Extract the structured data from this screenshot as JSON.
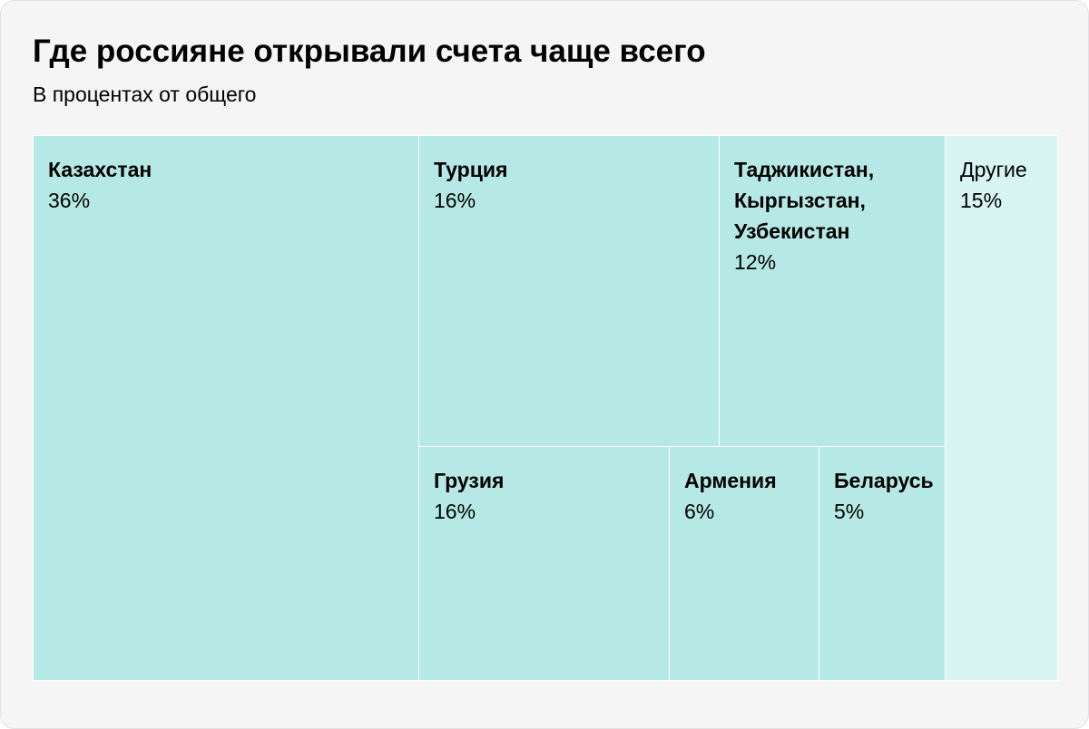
{
  "title": "Где россияне открывали счета чаще всего",
  "subtitle": "В процентах от общего",
  "colors": {
    "card_background": "#f5f5f6",
    "cell_main": "#b6e9e5",
    "cell_other": "#d9f5f2",
    "cell_border": "#ffffff",
    "text": "#000000"
  },
  "chart_data": {
    "type": "treemap",
    "title": "Где россияне открывали счета чаще всего",
    "subtitle": "В процентах от общего",
    "unit": "%",
    "items": [
      {
        "label": "Казахстан",
        "value": 36,
        "value_text": "36%"
      },
      {
        "label": "Турция",
        "value": 16,
        "value_text": "16%"
      },
      {
        "label": "Таджикистан,\nКыргызстан,\nУзбекистан",
        "value": 12,
        "value_text": "12%"
      },
      {
        "label": "Другие",
        "value": 15,
        "value_text": "15%"
      },
      {
        "label": "Грузия",
        "value": 16,
        "value_text": "16%"
      },
      {
        "label": "Армения",
        "value": 6,
        "value_text": "6%"
      },
      {
        "label": "Беларусь",
        "value": 5,
        "value_text": "5%"
      }
    ]
  }
}
